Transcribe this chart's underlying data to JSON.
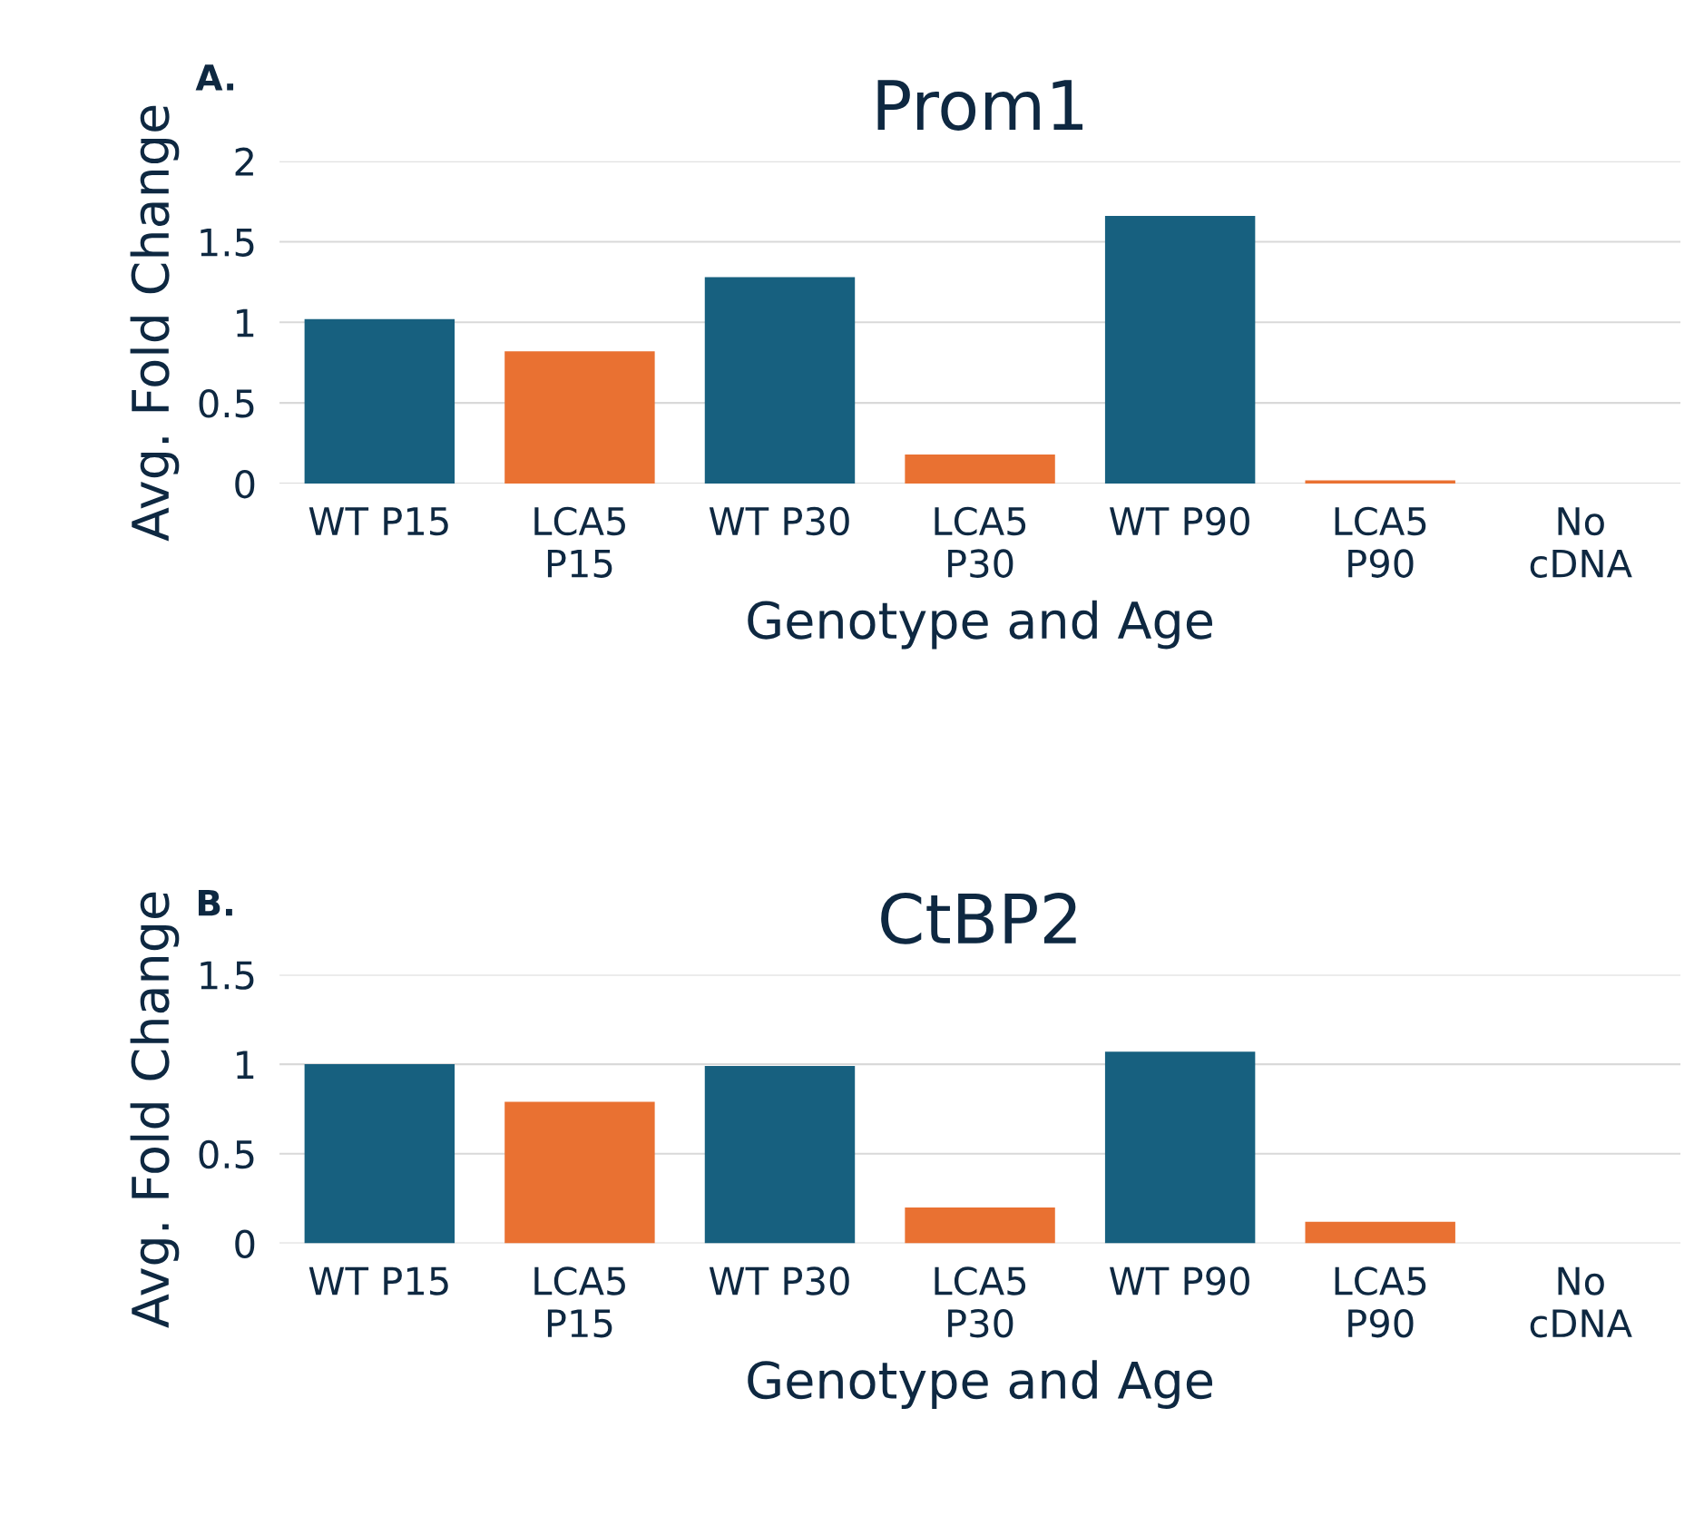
{
  "chart_data": [
    {
      "type": "bar",
      "title": "Prom1",
      "xlabel": "Genotype and Age",
      "ylabel": "Avg. Fold Change",
      "annotations": [
        "A."
      ],
      "categories": [
        "WT P15",
        "LCA5\nP15",
        "WT P30",
        "LCA5\nP30",
        "WT P90",
        "LCA5\nP90",
        "No\ncDNA"
      ],
      "values": [
        1.02,
        0.82,
        1.28,
        0.18,
        1.66,
        0.02,
        0
      ],
      "colors": [
        "#17607f",
        "#e97132",
        "#17607f",
        "#e97132",
        "#17607f",
        "#e97132",
        "#e97132"
      ],
      "ylim": [
        0,
        2
      ],
      "yticks": [
        0,
        0.5,
        1,
        1.5,
        2
      ],
      "grid": "y",
      "legend": false
    },
    {
      "type": "bar",
      "title": "CtBP2",
      "xlabel": "Genotype and Age",
      "ylabel": "Avg. Fold Change",
      "annotations": [
        "B."
      ],
      "categories": [
        "WT P15",
        "LCA5\nP15",
        "WT P30",
        "LCA5\nP30",
        "WT P90",
        "LCA5\nP90",
        "No\ncDNA"
      ],
      "values": [
        1.0,
        0.79,
        0.99,
        0.2,
        1.07,
        0.12,
        0
      ],
      "colors": [
        "#17607f",
        "#e97132",
        "#17607f",
        "#e97132",
        "#17607f",
        "#e97132",
        "#e97132"
      ],
      "ylim": [
        0,
        1.5
      ],
      "yticks": [
        0,
        0.5,
        1,
        1.5
      ],
      "grid": "y",
      "legend": false
    }
  ]
}
